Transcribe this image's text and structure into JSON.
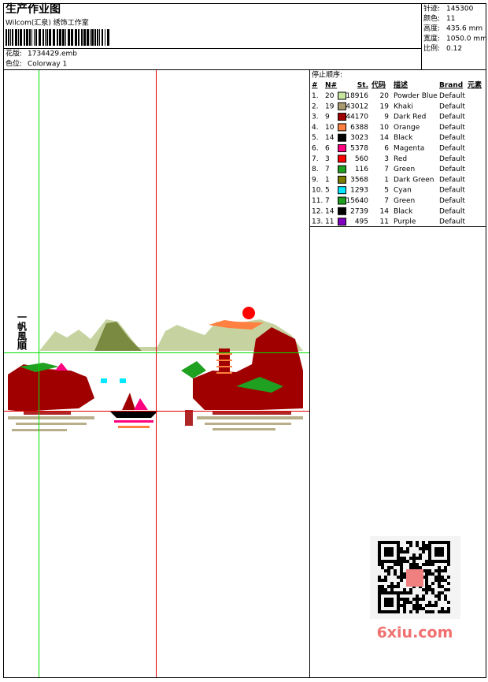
{
  "header": {
    "title": "生产作业图",
    "studio": "Wilcom(汇泉) 绣饰工作室",
    "design_file": {
      "label": "花版:",
      "value": "1734429.emb"
    },
    "colorway": {
      "label": "色位:",
      "value": "Colorway 1"
    }
  },
  "stats": [
    {
      "label": "针迹:",
      "value": "145300"
    },
    {
      "label": "颜色:",
      "value": "11"
    },
    {
      "label": "高度:",
      "value": "435.6 mm"
    },
    {
      "label": "宽度:",
      "value": "1050.0 mm"
    },
    {
      "label": "比例:",
      "value": "0.12"
    }
  ],
  "design_text": "一帆風順",
  "table": {
    "title": "停止顺序:",
    "columns": [
      "#",
      "N#",
      "St.",
      "代码",
      "描述",
      "Brand",
      "元素"
    ],
    "rows": [
      {
        "index": "1.",
        "needle": "20",
        "color": "#c8e6a0",
        "stitches": "18916",
        "code": "20",
        "desc": "Powder Blue",
        "brand": "Default"
      },
      {
        "index": "2.",
        "needle": "19",
        "color": "#a89a6e",
        "stitches": "43012",
        "code": "19",
        "desc": "Khaki",
        "brand": "Default"
      },
      {
        "index": "3.",
        "needle": "9",
        "color": "#a00000",
        "stitches": "44170",
        "code": "9",
        "desc": "Dark Red",
        "brand": "Default"
      },
      {
        "index": "4.",
        "needle": "10",
        "color": "#ff8040",
        "stitches": "6388",
        "code": "10",
        "desc": "Orange",
        "brand": "Default"
      },
      {
        "index": "5.",
        "needle": "14",
        "color": "#000000",
        "stitches": "3023",
        "code": "14",
        "desc": "Black",
        "brand": "Default"
      },
      {
        "index": "6.",
        "needle": "6",
        "color": "#ff0080",
        "stitches": "5378",
        "code": "6",
        "desc": "Magenta",
        "brand": "Default"
      },
      {
        "index": "7.",
        "needle": "3",
        "color": "#ff0000",
        "stitches": "560",
        "code": "3",
        "desc": "Red",
        "brand": "Default"
      },
      {
        "index": "8.",
        "needle": "7",
        "color": "#20a020",
        "stitches": "116",
        "code": "7",
        "desc": "Green",
        "brand": "Default"
      },
      {
        "index": "9.",
        "needle": "1",
        "color": "#7a7a00",
        "stitches": "3568",
        "code": "1",
        "desc": "Dark Green",
        "brand": "Default"
      },
      {
        "index": "10.",
        "needle": "5",
        "color": "#00e8ff",
        "stitches": "1293",
        "code": "5",
        "desc": "Cyan",
        "brand": "Default"
      },
      {
        "index": "11.",
        "needle": "7",
        "color": "#20a020",
        "stitches": "15640",
        "code": "7",
        "desc": "Green",
        "brand": "Default"
      },
      {
        "index": "12.",
        "needle": "14",
        "color": "#000000",
        "stitches": "2739",
        "code": "14",
        "desc": "Black",
        "brand": "Default"
      },
      {
        "index": "13.",
        "needle": "11",
        "color": "#8000c0",
        "stitches": "495",
        "code": "11",
        "desc": "Purple",
        "brand": "Default"
      }
    ]
  },
  "watermark": "6xiu.com"
}
